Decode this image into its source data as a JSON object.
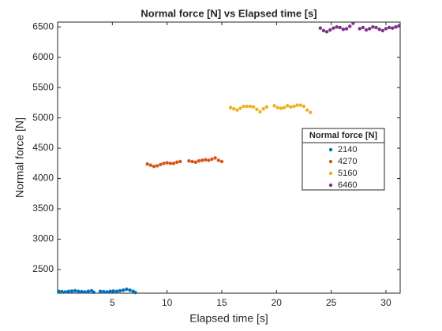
{
  "chart_data": {
    "type": "scatter",
    "title": "Normal force [N] vs Elapsed time [s]",
    "x_label": "Elapsed time [s]",
    "y_label": "Normal force [N]",
    "legend_title": "Normal force [N]",
    "legend_position": "east",
    "xlim": [
      0,
      31.3
    ],
    "xticks": [
      5,
      10,
      15,
      20,
      25,
      30
    ],
    "ylim": [
      2110,
      6580
    ],
    "yticks": [
      2500,
      3000,
      3500,
      4000,
      4500,
      5000,
      5500,
      6000,
      6500
    ],
    "series": [
      {
        "name": "2140",
        "color": "#0072BD",
        "x": [
          0.1,
          0.4,
          0.7,
          1.0,
          1.3,
          1.6,
          1.9,
          2.2,
          2.5,
          2.8,
          3.1,
          3.3,
          3.9,
          4.2,
          4.5,
          4.8,
          5.1,
          5.4,
          5.7,
          6.0,
          6.3,
          6.6,
          6.9,
          7.1
        ],
        "values": [
          2140,
          2135,
          2130,
          2140,
          2145,
          2150,
          2140,
          2135,
          2130,
          2140,
          2150,
          2125,
          2140,
          2135,
          2130,
          2140,
          2145,
          2140,
          2150,
          2160,
          2175,
          2160,
          2140,
          2120
        ]
      },
      {
        "name": "4270",
        "color": "#D95319",
        "x": [
          8.2,
          8.5,
          8.8,
          9.1,
          9.4,
          9.7,
          10.0,
          10.3,
          10.6,
          10.9,
          11.2,
          12.0,
          12.3,
          12.6,
          12.9,
          13.2,
          13.5,
          13.8,
          14.1,
          14.4,
          14.7,
          15.0
        ],
        "values": [
          4240,
          4220,
          4200,
          4210,
          4230,
          4250,
          4260,
          4250,
          4250,
          4270,
          4280,
          4290,
          4280,
          4270,
          4290,
          4300,
          4310,
          4300,
          4320,
          4340,
          4300,
          4280
        ]
      },
      {
        "name": "5160",
        "color": "#EDB120",
        "x": [
          15.8,
          16.1,
          16.4,
          16.7,
          17.0,
          17.3,
          17.6,
          17.9,
          18.2,
          18.5,
          18.8,
          19.1,
          19.8,
          20.1,
          20.4,
          20.7,
          21.0,
          21.3,
          21.6,
          21.9,
          22.2,
          22.5,
          22.8,
          23.1
        ],
        "values": [
          5170,
          5150,
          5130,
          5160,
          5190,
          5190,
          5190,
          5180,
          5140,
          5100,
          5150,
          5180,
          5200,
          5170,
          5160,
          5170,
          5200,
          5180,
          5190,
          5210,
          5210,
          5190,
          5130,
          5090
        ]
      },
      {
        "name": "6460",
        "color": "#7E2F8E",
        "x": [
          24.0,
          24.3,
          24.6,
          24.9,
          25.2,
          25.5,
          25.8,
          26.1,
          26.4,
          26.7,
          27.0,
          27.6,
          27.9,
          28.2,
          28.5,
          28.8,
          29.1,
          29.4,
          29.7,
          30.0,
          30.3,
          30.6,
          30.9,
          31.2
        ],
        "values": [
          6480,
          6440,
          6420,
          6450,
          6480,
          6500,
          6490,
          6460,
          6470,
          6510,
          6560,
          6470,
          6490,
          6450,
          6470,
          6500,
          6490,
          6460,
          6440,
          6470,
          6490,
          6480,
          6500,
          6520
        ]
      }
    ]
  }
}
